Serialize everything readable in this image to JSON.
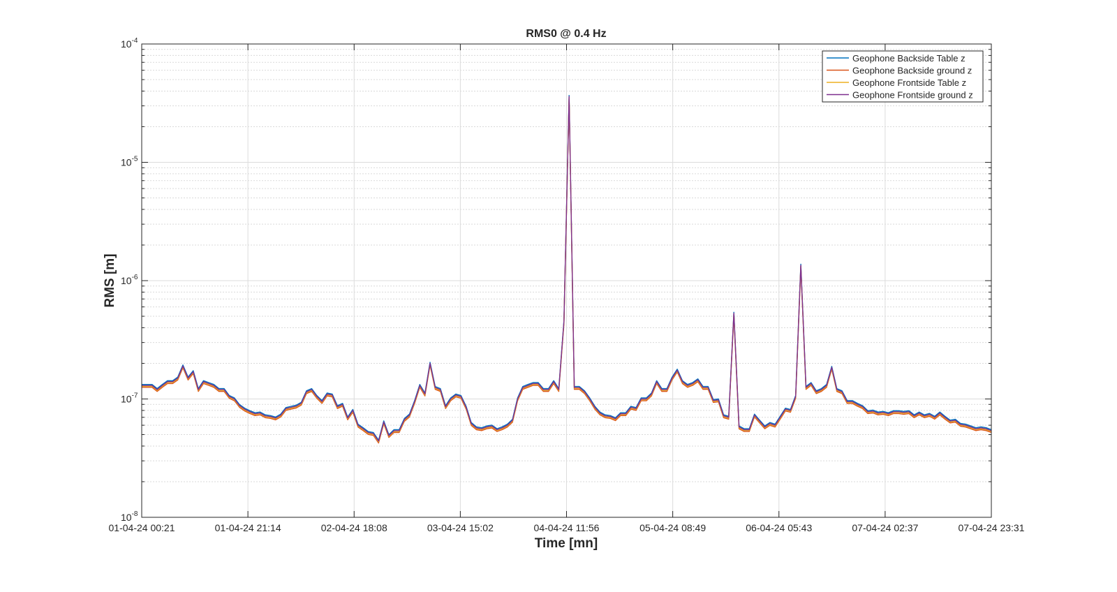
{
  "chart_data": {
    "type": "line",
    "title": "RMS0 @ 0.4 Hz",
    "xlabel": "Time [mn]",
    "ylabel": "RMS [m]",
    "yscale": "log",
    "ylim": [
      1e-08,
      0.0001
    ],
    "xlim": [
      "01-04-24 00:21",
      "07-04-24 23:31"
    ],
    "x_tick_labels": [
      "01-04-24 00:21",
      "01-04-24 21:14",
      "02-04-24 18:08",
      "03-04-24 15:02",
      "04-04-24 11:56",
      "05-04-24 08:49",
      "06-04-24 05:43",
      "07-04-24 02:37",
      "07-04-24 23:31"
    ],
    "y_ticks": [
      {
        "base": "10",
        "exp": "-8"
      },
      {
        "base": "10",
        "exp": "-7"
      },
      {
        "base": "10",
        "exp": "-6"
      },
      {
        "base": "10",
        "exp": "-5"
      },
      {
        "base": "10",
        "exp": "-4"
      }
    ],
    "grid": true,
    "minor_grid": true,
    "legend_position": "top-right",
    "series": [
      {
        "name": "Geophone Backside Table z",
        "color": "#0072BD",
        "offset": 1.02
      },
      {
        "name": "Geophone Backside ground z",
        "color": "#D95319",
        "offset": 0.965
      },
      {
        "name": "Geophone Frontside Table z",
        "color": "#EDB120",
        "offset": 0.985
      },
      {
        "name": "Geophone Frontside ground z",
        "color": "#7E2F8E",
        "offset": 1.0
      }
    ],
    "base_values": [
      1.3e-07,
      1.3e-07,
      1.3e-07,
      1.2e-07,
      1.3e-07,
      1.4e-07,
      1.4e-07,
      1.5e-07,
      1.9e-07,
      1.5e-07,
      1.7e-07,
      1.2e-07,
      1.4e-07,
      1.35e-07,
      1.3e-07,
      1.2e-07,
      1.2e-07,
      1.05e-07,
      1e-07,
      8.8e-08,
      8.2e-08,
      7.8e-08,
      7.5e-08,
      7.6e-08,
      7.2e-08,
      7.1e-08,
      6.9e-08,
      7.3e-08,
      8.3e-08,
      8.5e-08,
      8.7e-08,
      9.2e-08,
      1.15e-07,
      1.2e-07,
      1.05e-07,
      9.5e-08,
      1.1e-07,
      1.08e-07,
      8.6e-08,
      9e-08,
      6.9e-08,
      8e-08,
      6e-08,
      5.6e-08,
      5.2e-08,
      5.1e-08,
      4.4e-08,
      6.4e-08,
      4.9e-08,
      5.4e-08,
      5.4e-08,
      6.7e-08,
      7.3e-08,
      9.5e-08,
      1.3e-07,
      1.1e-07,
      2e-07,
      1.25e-07,
      1.2e-07,
      8.6e-08,
      1e-07,
      1.08e-07,
      1.05e-07,
      8.5e-08,
      6.2e-08,
      5.7e-08,
      5.6e-08,
      5.8e-08,
      5.9e-08,
      5.5e-08,
      5.7e-08,
      6e-08,
      6.6e-08,
      1e-07,
      1.25e-07,
      1.3e-07,
      1.35e-07,
      1.35e-07,
      1.2e-07,
      1.2e-07,
      1.4e-07,
      1.2e-07,
      4.5e-07,
      3.6e-05,
      1.25e-07,
      1.25e-07,
      1.15e-07,
      1e-07,
      8.5e-08,
      7.6e-08,
      7.2e-08,
      7.1e-08,
      6.8e-08,
      7.5e-08,
      7.5e-08,
      8.5e-08,
      8.3e-08,
      1e-07,
      1e-07,
      1.1e-07,
      1.4e-07,
      1.2e-07,
      1.2e-07,
      1.5e-07,
      1.75e-07,
      1.4e-07,
      1.3e-07,
      1.35e-07,
      1.45e-07,
      1.25e-07,
      1.25e-07,
      9.7e-08,
      9.8e-08,
      7.2e-08,
      7e-08,
      5.3e-07,
      5.8e-08,
      5.5e-08,
      5.5e-08,
      7.3e-08,
      6.5e-08,
      5.8e-08,
      6.2e-08,
      6e-08,
      7e-08,
      8.2e-08,
      8e-08,
      1.05e-07,
      1.35e-06,
      1.25e-07,
      1.35e-07,
      1.15e-07,
      1.2e-07,
      1.3e-07,
      1.85e-07,
      1.2e-07,
      1.15e-07,
      9.5e-08,
      9.5e-08,
      9e-08,
      8.6e-08,
      7.8e-08,
      7.9e-08,
      7.6e-08,
      7.7e-08,
      7.5e-08,
      7.8e-08,
      7.8e-08,
      7.7e-08,
      7.8e-08,
      7.2e-08,
      7.6e-08,
      7.2e-08,
      7.4e-08,
      7e-08,
      7.6e-08,
      7e-08,
      6.5e-08,
      6.6e-08,
      6.1e-08,
      6e-08,
      5.8e-08,
      5.6e-08,
      5.7e-08,
      5.6e-08,
      5.4e-08
    ]
  }
}
